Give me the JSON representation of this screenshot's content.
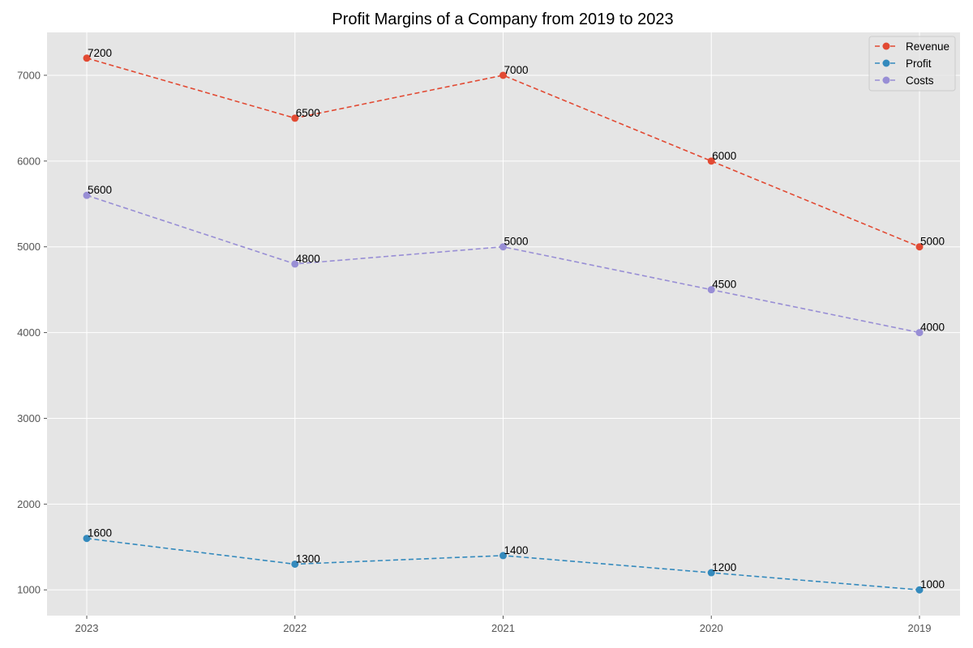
{
  "chart_data": {
    "type": "line",
    "title": "Profit Margins of a Company from 2019 to 2023",
    "xlabel": "",
    "ylabel": "",
    "categories": [
      "2023",
      "2022",
      "2021",
      "2020",
      "2019"
    ],
    "y_ticks": [
      1000,
      2000,
      3000,
      4000,
      5000,
      6000,
      7000
    ],
    "ylim": [
      700,
      7500
    ],
    "grid": true,
    "legend_position": "top-right",
    "line_style": "dashed",
    "marker": "circle",
    "series": [
      {
        "name": "Revenue",
        "color": "#E24A33",
        "values": [
          7200,
          6500,
          7000,
          6000,
          5000
        ]
      },
      {
        "name": "Profit",
        "color": "#348ABD",
        "values": [
          1600,
          1300,
          1400,
          1200,
          1000
        ]
      },
      {
        "name": "Costs",
        "color": "#988ED5",
        "values": [
          5600,
          4800,
          5000,
          4500,
          4000
        ]
      }
    ]
  }
}
